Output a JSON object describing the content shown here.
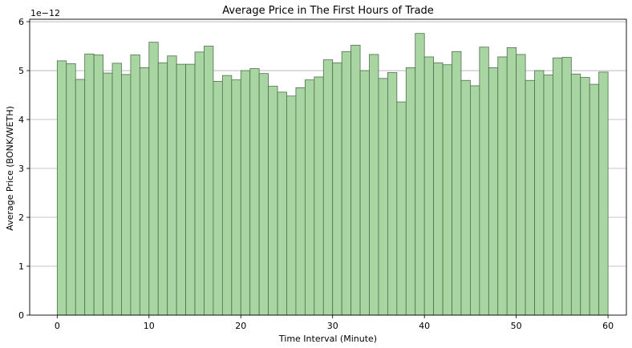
{
  "chart_data": {
    "type": "bar",
    "title": "Average Price in The First Hours of Trade",
    "xlabel": "Time Interval (Minute)",
    "ylabel": "Average Price (BONK/WETH)",
    "y_scale_note": "1e−12",
    "y_scale_factor": 1e-12,
    "xlim": [
      -3,
      62
    ],
    "ylim": [
      0,
      6.05
    ],
    "xticks": [
      0,
      10,
      20,
      30,
      40,
      50,
      60
    ],
    "yticks": [
      0,
      1,
      2,
      3,
      4,
      5,
      6
    ],
    "grid": "horizontal",
    "bar_color": "#a8d5a2",
    "bar_edge_color": "#4f6f4c",
    "x": [
      0,
      1,
      2,
      3,
      4,
      5,
      6,
      7,
      8,
      9,
      10,
      11,
      12,
      13,
      14,
      15,
      16,
      17,
      18,
      19,
      20,
      21,
      22,
      23,
      24,
      25,
      26,
      27,
      28,
      29,
      30,
      31,
      32,
      33,
      34,
      35,
      36,
      37,
      38,
      39,
      40,
      41,
      42,
      43,
      44,
      45,
      46,
      47,
      48,
      49,
      50,
      51,
      52,
      53,
      54,
      55,
      56,
      57,
      58,
      59
    ],
    "values": [
      5.2,
      5.14,
      4.82,
      5.34,
      5.32,
      4.95,
      5.15,
      4.92,
      5.32,
      5.06,
      5.58,
      5.16,
      5.3,
      5.13,
      5.13,
      5.38,
      5.5,
      4.78,
      4.9,
      4.81,
      5.0,
      5.04,
      4.94,
      4.68,
      4.56,
      4.48,
      4.65,
      4.81,
      4.87,
      5.22,
      5.16,
      5.39,
      5.52,
      5.0,
      5.33,
      4.84,
      4.96,
      4.36,
      5.06,
      5.76,
      5.28,
      5.16,
      5.12,
      5.39,
      4.8,
      4.69,
      5.48,
      5.06,
      5.28,
      5.47,
      5.33,
      4.8,
      5.0,
      4.91,
      5.26,
      5.27,
      4.93,
      4.86,
      4.72,
      4.97
    ]
  }
}
